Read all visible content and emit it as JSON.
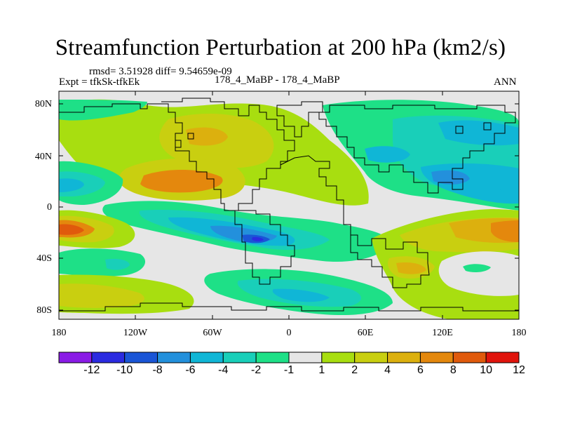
{
  "title": "Streamfunction Perturbation at 200 hPa (km2/s)",
  "stats": "rmsd= 3.51928 diff= 9.54659e-09",
  "experiment": "Expt = tfkSk-tfkEk",
  "case": "178_4_MaBP - 178_4_MaBP",
  "season": "ANN",
  "map": {
    "lon_ticks": [
      "180",
      "120W",
      "60W",
      "0",
      "60E",
      "120E",
      "180"
    ],
    "lat_ticks": [
      "80N",
      "40N",
      "0",
      "40S",
      "80S"
    ]
  },
  "colorbar": {
    "labels": [
      "-12",
      "-10",
      "-8",
      "-6",
      "-4",
      "-2",
      "-1",
      "1",
      "2",
      "4",
      "6",
      "8",
      "10",
      "12"
    ],
    "colors": [
      "#8a1be6",
      "#2b2be0",
      "#1a55d6",
      "#2390dc",
      "#10b6d6",
      "#19cfb9",
      "#1ee087",
      "#e6e6e6",
      "#a8de10",
      "#c9cf10",
      "#dcb00e",
      "#e4880d",
      "#e05a0c",
      "#e0140c"
    ]
  },
  "field_colors": {
    "neutral": "#e6e6e6",
    "pos1": "#a8de10",
    "pos2": "#c9cf10",
    "pos3": "#dcb00e",
    "pos4": "#e4880d",
    "pos5": "#e05a0c",
    "neg1": "#1ee087",
    "neg2": "#19cfb9",
    "neg3": "#10b6d6",
    "neg4": "#2390dc",
    "neg5": "#1a55d6",
    "neg6": "#2b2be0"
  },
  "coastline_color": "#000000"
}
